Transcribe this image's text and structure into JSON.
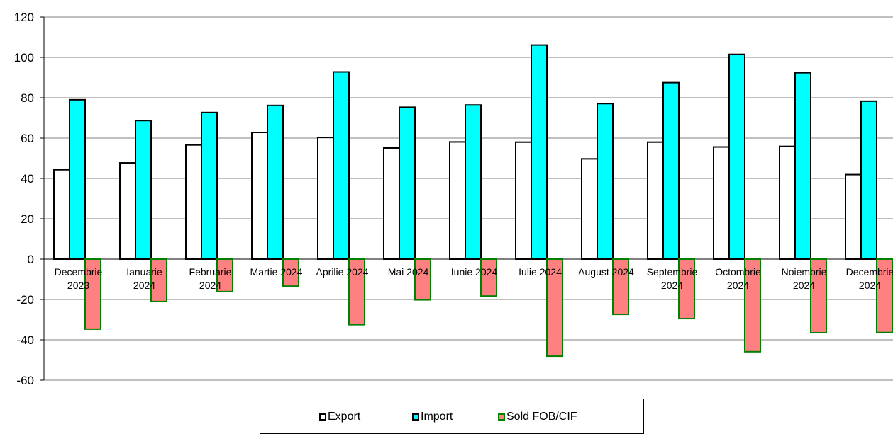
{
  "chart_data": {
    "type": "bar",
    "categories": [
      [
        "Decembrie",
        "2023"
      ],
      [
        "Ianuarie",
        "2024"
      ],
      [
        "Februarie",
        "2024"
      ],
      [
        "Martie 2024"
      ],
      [
        "Aprilie 2024"
      ],
      [
        "Mai 2024"
      ],
      [
        "Iunie 2024"
      ],
      [
        "Iulie 2024"
      ],
      [
        "August 2024"
      ],
      [
        "Septembrie",
        "2024"
      ],
      [
        "Octombrie",
        "2024"
      ],
      [
        "Noiembrie",
        "2024"
      ],
      [
        "Decembrie",
        "2024"
      ]
    ],
    "series": [
      {
        "name": "Export",
        "color": "#ffffff",
        "stroke": "#000000",
        "values": [
          44.3,
          47.7,
          56.6,
          62.8,
          60.3,
          55.1,
          58.1,
          58.0,
          49.7,
          58.0,
          55.6,
          55.9,
          41.9
        ]
      },
      {
        "name": "Import",
        "color": "#00ffff",
        "stroke": "#000000",
        "values": [
          79.0,
          68.7,
          72.7,
          76.2,
          92.8,
          75.3,
          76.4,
          106.1,
          77.1,
          87.5,
          101.5,
          92.4,
          78.3
        ]
      },
      {
        "name": "Sold FOB/CIF",
        "color": "#ff8080",
        "stroke": "#008000",
        "values": [
          -34.7,
          -21.0,
          -16.1,
          -13.4,
          -32.5,
          -20.2,
          -18.3,
          -48.1,
          -27.4,
          -29.5,
          -45.9,
          -36.5,
          -36.4
        ]
      }
    ],
    "yticks": [
      "120",
      "100",
      "80",
      "60",
      "40",
      "20",
      "0",
      "-20",
      "-40",
      "-60"
    ],
    "ylim": [
      -60,
      120
    ],
    "grid": true,
    "legend_position": "bottom"
  }
}
